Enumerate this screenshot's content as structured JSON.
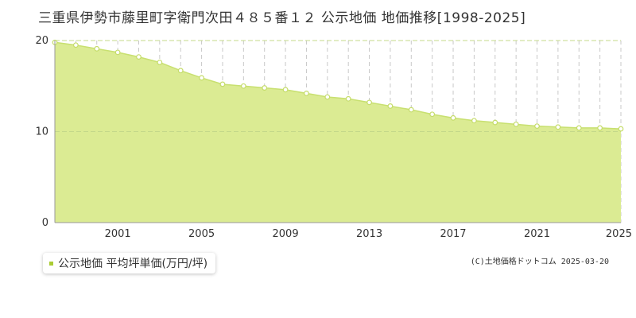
{
  "colors": {
    "area_fill": "#dbeb93",
    "line": "#c8e070",
    "grid": "#c8c8c8",
    "marker_fill": "#ffffff",
    "marker_stroke": "#c5dc6a",
    "legend_marker": "#aacc33"
  },
  "copyright": "(C)土地価格ドットコム 2025-03-20",
  "chart_data": {
    "type": "area",
    "title": "三重県伊勢市藤里町字衛門次田４８５番１２ 公示地価 地価推移[1998-2025]",
    "xlabel": "",
    "ylabel": "",
    "x": [
      1998,
      1999,
      2000,
      2001,
      2002,
      2003,
      2004,
      2005,
      2006,
      2007,
      2008,
      2009,
      2010,
      2011,
      2012,
      2013,
      2014,
      2015,
      2016,
      2017,
      2018,
      2019,
      2020,
      2021,
      2022,
      2023,
      2024,
      2025
    ],
    "series": [
      {
        "name": "公示地価 平均坪単価(万円/坪)",
        "values": [
          19.8,
          19.5,
          19.1,
          18.7,
          18.2,
          17.6,
          16.7,
          15.9,
          15.2,
          15.0,
          14.8,
          14.6,
          14.2,
          13.8,
          13.6,
          13.2,
          12.8,
          12.4,
          11.9,
          11.5,
          11.2,
          11.0,
          10.8,
          10.6,
          10.5,
          10.4,
          10.4,
          10.3
        ]
      }
    ],
    "xlim": [
      1998,
      2025
    ],
    "ylim": [
      0,
      20
    ],
    "yticks": [
      0,
      10,
      20
    ],
    "xticks": [
      2001,
      2005,
      2009,
      2013,
      2017,
      2021,
      2025
    ],
    "grid": true,
    "legend": "bottom-left"
  }
}
